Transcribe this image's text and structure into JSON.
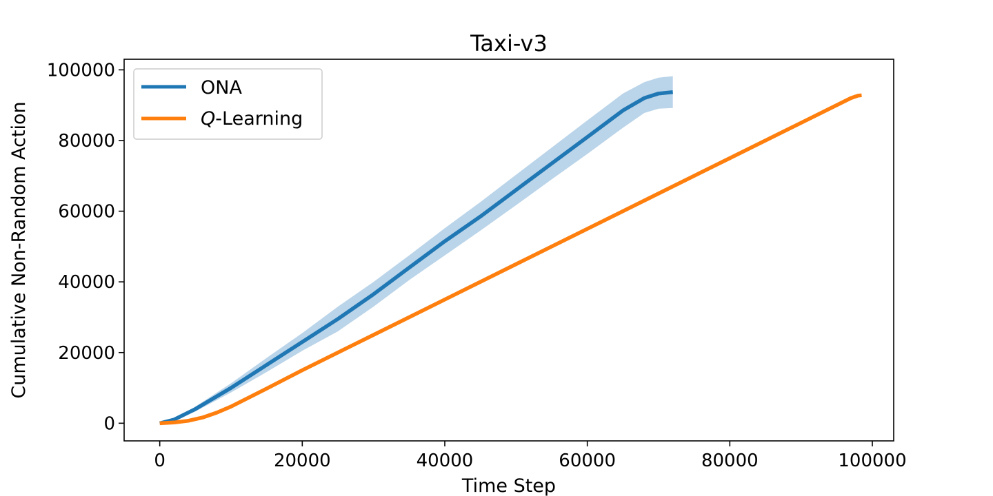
{
  "chart_data": {
    "type": "line",
    "title": "Taxi-v3",
    "xlabel": "Time Step",
    "ylabel": "Cumulative Non-Random Action",
    "xlim": [
      -5000,
      103000
    ],
    "ylim": [
      -5000,
      103000
    ],
    "xticks": [
      0,
      20000,
      40000,
      60000,
      80000,
      100000
    ],
    "yticks": [
      0,
      20000,
      40000,
      60000,
      80000,
      100000
    ],
    "xtick_labels": [
      "0",
      "20000",
      "40000",
      "60000",
      "80000",
      "100000"
    ],
    "ytick_labels": [
      "0",
      "20000",
      "40000",
      "60000",
      "80000",
      "100000"
    ],
    "grid": false,
    "legend_position": "top-left",
    "series": [
      {
        "name": "ONA",
        "color": "#1f77b4",
        "band_color": "#aecde5",
        "x": [
          0,
          2000,
          5000,
          10000,
          15000,
          20000,
          25000,
          30000,
          35000,
          40000,
          45000,
          50000,
          55000,
          60000,
          65000,
          68000,
          70000,
          72000
        ],
        "y": [
          0,
          1000,
          4000,
          10000,
          16500,
          23000,
          29500,
          36500,
          44000,
          51500,
          58500,
          66000,
          73500,
          81000,
          88500,
          92000,
          93300,
          93700
        ],
        "lower": [
          0,
          800,
          3300,
          8700,
          14500,
          20500,
          26000,
          33000,
          40500,
          47500,
          54500,
          61700,
          69000,
          76200,
          83600,
          87800,
          89000,
          89200
        ],
        "upper": [
          0,
          1200,
          4700,
          11300,
          18500,
          25500,
          33000,
          40000,
          47500,
          55200,
          62600,
          70300,
          78000,
          85700,
          93300,
          96500,
          97800,
          98200
        ]
      },
      {
        "name": "Q-Learning",
        "legend_italic_prefix": "Q",
        "legend_suffix": "-Learning",
        "color": "#ff7f0e",
        "x": [
          0,
          2000,
          4000,
          6000,
          8000,
          10000,
          15000,
          20000,
          30000,
          40000,
          50000,
          60000,
          70000,
          80000,
          90000,
          97000,
          98000,
          98500
        ],
        "y": [
          0,
          200,
          700,
          1600,
          3000,
          4700,
          9800,
          15000,
          25000,
          35000,
          45000,
          55000,
          65000,
          75000,
          85000,
          92000,
          92700,
          92800
        ]
      }
    ]
  }
}
